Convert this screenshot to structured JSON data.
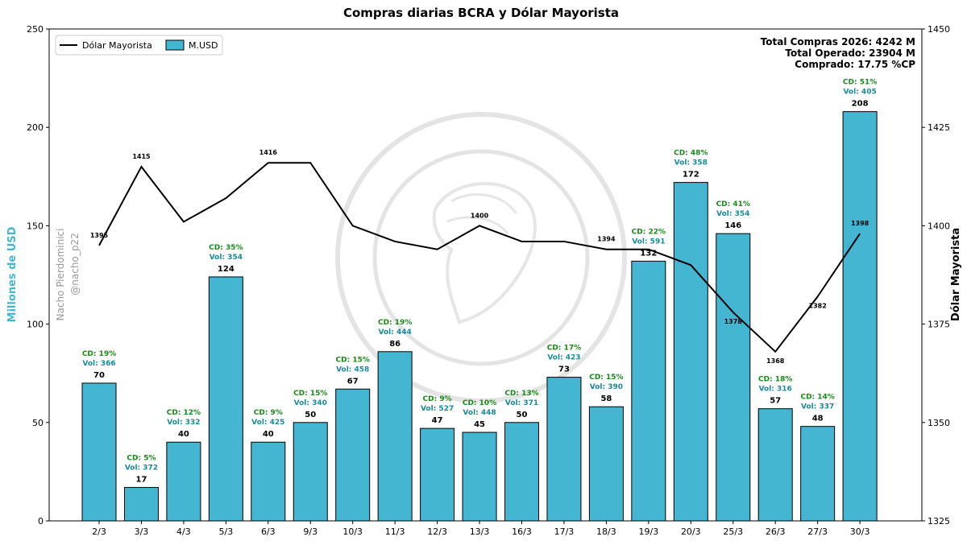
{
  "chart_data": {
    "type": "bar+line",
    "title": "Compras diarias BCRA y Dólar Mayorista",
    "ylabel_left": "Millones de USD",
    "ylabel_right": "Dólar Mayorista",
    "ylim_left": [
      0,
      250
    ],
    "ylim_right": [
      1325,
      1450
    ],
    "yticks_left": [
      0,
      50,
      100,
      150,
      200,
      250
    ],
    "yticks_right": [
      1325,
      1350,
      1375,
      1400,
      1425,
      1450
    ],
    "categories": [
      "2/3",
      "3/3",
      "4/3",
      "5/3",
      "6/3",
      "9/3",
      "10/3",
      "11/3",
      "12/3",
      "13/3",
      "16/3",
      "17/3",
      "18/3",
      "19/3",
      "20/3",
      "25/3",
      "26/3",
      "27/3",
      "30/3"
    ],
    "series": [
      {
        "name": "M.USD",
        "type": "bar",
        "axis": "left",
        "values": [
          70,
          17,
          40,
          124,
          40,
          50,
          67,
          86,
          47,
          45,
          50,
          73,
          58,
          132,
          172,
          146,
          57,
          48,
          208
        ],
        "cd_labels": [
          "CD: 19%",
          "CD: 5%",
          "CD: 12%",
          "CD: 35%",
          "CD: 9%",
          "CD: 15%",
          "CD: 15%",
          "CD: 19%",
          "CD: 9%",
          "CD: 10%",
          "CD: 13%",
          "CD: 17%",
          "CD: 15%",
          "CD: 22%",
          "CD: 48%",
          "CD: 41%",
          "CD: 18%",
          "CD: 14%",
          "CD: 51%"
        ],
        "vol_labels": [
          "Vol: 366",
          "Vol: 372",
          "Vol: 332",
          "Vol: 354",
          "Vol: 425",
          "Vol: 340",
          "Vol: 458",
          "Vol: 444",
          "Vol: 527",
          "Vol: 448",
          "Vol: 371",
          "Vol: 423",
          "Vol: 390",
          "Vol: 591",
          "Vol: 358",
          "Vol: 354",
          "Vol: 316",
          "Vol: 337",
          "Vol: 405"
        ]
      },
      {
        "name": "Dólar Mayorista",
        "type": "line",
        "axis": "right",
        "values": [
          1395,
          1415,
          1401,
          1407,
          1416,
          1416,
          1400,
          1396,
          1394,
          1400,
          1396,
          1396,
          1394,
          1394,
          1390,
          1378,
          1368,
          1382,
          1398
        ],
        "labels": [
          "1395",
          "1415",
          "",
          "",
          "1416",
          "",
          "",
          "",
          "",
          "1400",
          "",
          "",
          "1394",
          "",
          "",
          "1378",
          "1368",
          "1382",
          "1398"
        ]
      }
    ],
    "legend": {
      "position": "top-left",
      "entries": [
        "Dólar Mayorista",
        "M.USD"
      ]
    },
    "summary": [
      "Total Compras 2026: 4242 M",
      "Total Operado: 23904 M",
      "Comprado: 17.75 %CP"
    ],
    "side_credit": [
      "Nacho Pierdominici",
      "@nacho_p22"
    ],
    "colors": {
      "bar": "#45b6d2",
      "line": "#000000",
      "cd_text": "#1a8a1a",
      "vol_text": "#1a8a9a",
      "left_label": "#45b6d2",
      "watermark": "#cccccc"
    }
  }
}
